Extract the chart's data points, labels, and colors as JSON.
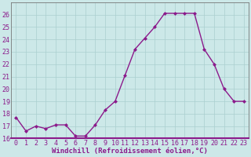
{
  "x": [
    0,
    1,
    2,
    3,
    4,
    5,
    6,
    7,
    8,
    9,
    10,
    11,
    12,
    13,
    14,
    15,
    16,
    17,
    18,
    19,
    20,
    21,
    22,
    23
  ],
  "y": [
    17.7,
    16.6,
    17.0,
    16.8,
    17.1,
    17.1,
    16.2,
    16.2,
    17.1,
    18.3,
    19.0,
    21.1,
    23.2,
    24.1,
    25.0,
    26.1,
    26.1,
    26.1,
    26.1,
    23.2,
    22.0,
    20.0,
    19.0,
    19.0
  ],
  "line_color": "#8B1A8B",
  "marker": "D",
  "marker_size": 2.0,
  "bg_color": "#cce8e8",
  "grid_color": "#aacfcf",
  "xlabel": "Windchill (Refroidissement éolien,°C)",
  "ylim": [
    16,
    27
  ],
  "xlim": [
    -0.5,
    23.5
  ],
  "yticks": [
    16,
    17,
    18,
    19,
    20,
    21,
    22,
    23,
    24,
    25,
    26
  ],
  "xticks": [
    0,
    1,
    2,
    3,
    4,
    5,
    6,
    7,
    8,
    9,
    10,
    11,
    12,
    13,
    14,
    15,
    16,
    17,
    18,
    19,
    20,
    21,
    22,
    23
  ],
  "label_fontsize": 6.5,
  "tick_fontsize": 6.0,
  "line_width": 1.0,
  "spine_color": "#777777",
  "xlabel_color": "#8B1A8B",
  "tick_color": "#8B1A8B"
}
